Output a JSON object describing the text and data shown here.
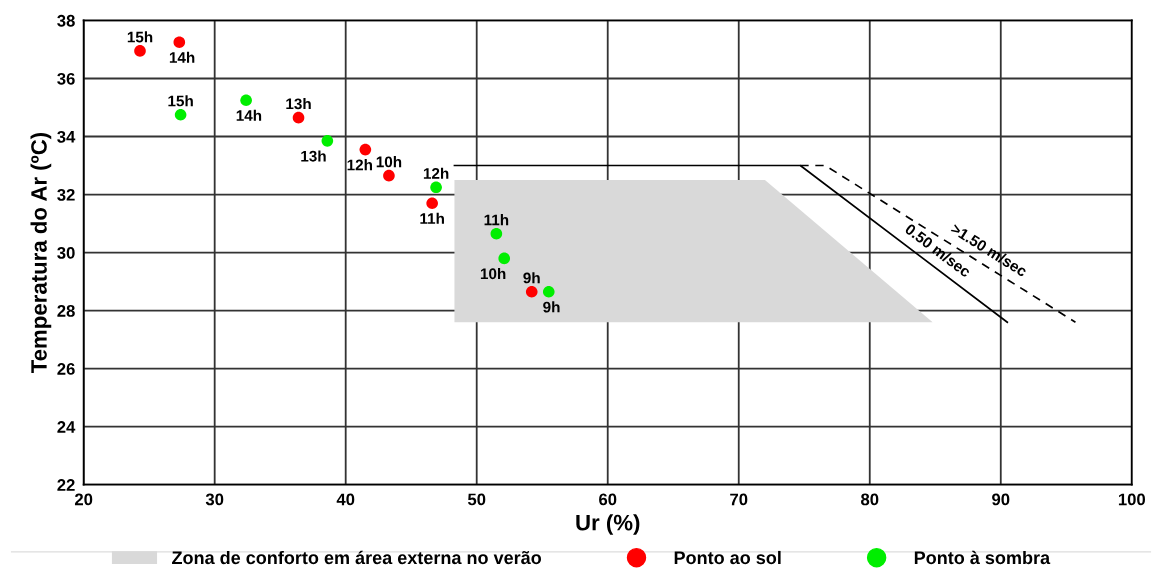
{
  "chart_data": {
    "type": "scatter",
    "xlabel": "Ur (%)",
    "ylabel": "Temperatura do Ar (ºC)",
    "xlim": [
      20,
      100
    ],
    "xticks": [
      20,
      30,
      40,
      50,
      60,
      70,
      80,
      90,
      100
    ],
    "ylim": [
      22,
      38
    ],
    "yticks": [
      22,
      24,
      26,
      28,
      30,
      32,
      34,
      36,
      38
    ],
    "grid": true,
    "legend": "bottom",
    "marker": "circle",
    "series": [
      {
        "name": "Zona de conforto em área externa no verão",
        "type": "area",
        "color": "#d9d9d9",
        "marker": "none",
        "x": [
          48.3,
          72.0,
          84.8,
          48.3
        ],
        "values": [
          32.5,
          32.5,
          27.6,
          27.6
        ]
      },
      {
        "name": "0.50 m/sec",
        "type": "line",
        "color": "#000000",
        "line_style": "solid",
        "marker": "none",
        "x": [
          48.3,
          74.7,
          90.5
        ],
        "values": [
          33.0,
          33.0,
          27.6
        ]
      },
      {
        "name": ">1.50 m/sec",
        "type": "line",
        "color": "#000000",
        "line_style": "dashed",
        "marker": "none",
        "x": [
          74.7,
          76.6,
          95.7
        ],
        "values": [
          33.0,
          33.0,
          27.6
        ]
      },
      {
        "name": "Ponto ao sol",
        "color": "#ff0000",
        "x": [
          24.3,
          27.3,
          36.4,
          41.5,
          43.3,
          46.6,
          54.2
        ],
        "values": [
          36.95,
          37.25,
          34.65,
          33.55,
          32.65,
          31.7,
          28.65
        ]
      },
      {
        "name": "Ponto à sombra",
        "color": "#00ee00",
        "x": [
          27.4,
          32.4,
          38.6,
          46.9,
          51.5,
          52.1,
          55.5
        ],
        "values": [
          34.75,
          35.25,
          33.85,
          32.25,
          30.65,
          29.8,
          28.65
        ]
      }
    ],
    "annotations": [
      {
        "text": "15h",
        "x": 24.3,
        "y": 36.95
      },
      {
        "text": "14h",
        "x": 27.3,
        "y": 37.25
      },
      {
        "text": "13h",
        "x": 36.4,
        "y": 34.65
      },
      {
        "text": "12h",
        "x": 41.5,
        "y": 33.55
      },
      {
        "text": "10h",
        "x": 43.3,
        "y": 32.65
      },
      {
        "text": "11h",
        "x": 46.6,
        "y": 31.7
      },
      {
        "text": "9h",
        "x": 54.2,
        "y": 28.65
      },
      {
        "text": "15h",
        "x": 27.4,
        "y": 34.75
      },
      {
        "text": "14h",
        "x": 32.4,
        "y": 35.25
      },
      {
        "text": "13h",
        "x": 38.6,
        "y": 33.85
      },
      {
        "text": "12h",
        "x": 46.9,
        "y": 32.25
      },
      {
        "text": "11h",
        "x": 51.5,
        "y": 30.65
      },
      {
        "text": "10h",
        "x": 52.1,
        "y": 29.8
      },
      {
        "text": "9h",
        "x": 55.5,
        "y": 28.65
      }
    ]
  }
}
